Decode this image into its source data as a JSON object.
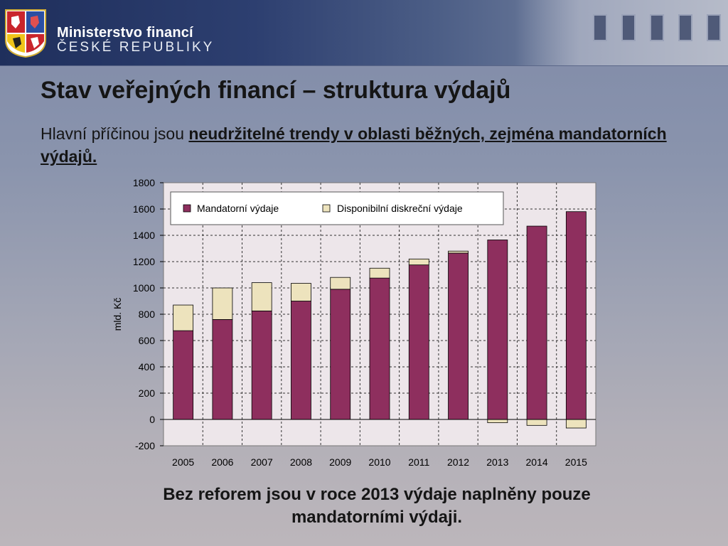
{
  "header": {
    "ministry_name": "Ministerstvo financí",
    "ministry_sub": "ČESKÉ REPUBLIKY"
  },
  "slide": {
    "title": "Stav veřejných financí – struktura výdajů",
    "subtitle_plain": "Hlavní příčinou jsou ",
    "subtitle_emphasis": "neudržitelné trendy v oblasti běžných, zejména mandatorních výdajů.",
    "footer_line1": "Bez reforem jsou v roce 2013 výdaje naplněny pouze",
    "footer_line2": "mandatorními výdaji."
  },
  "colors": {
    "mandatory": "#8e2f5e",
    "discretionary": "#ede3bd",
    "plot_bg": "#ede6ea"
  },
  "chart_data": {
    "type": "bar",
    "stacked": true,
    "categories": [
      "2005",
      "2006",
      "2007",
      "2008",
      "2009",
      "2010",
      "2011",
      "2012",
      "2013",
      "2014",
      "2015"
    ],
    "series": [
      {
        "name": "Mandatorní výdaje",
        "values": [
          675,
          760,
          825,
          900,
          990,
          1075,
          1175,
          1265,
          1365,
          1470,
          1580
        ]
      },
      {
        "name": "Disponibilní diskreční výdaje",
        "values": [
          195,
          240,
          215,
          135,
          90,
          75,
          45,
          15,
          -25,
          -45,
          -65
        ]
      }
    ],
    "ylabel": "mld. Kč",
    "xlabel": "",
    "ylim": [
      -200,
      1800
    ],
    "yticks": [
      -200,
      0,
      200,
      400,
      600,
      800,
      1000,
      1200,
      1400,
      1600,
      1800
    ],
    "grid": true,
    "legend_position": "top"
  }
}
